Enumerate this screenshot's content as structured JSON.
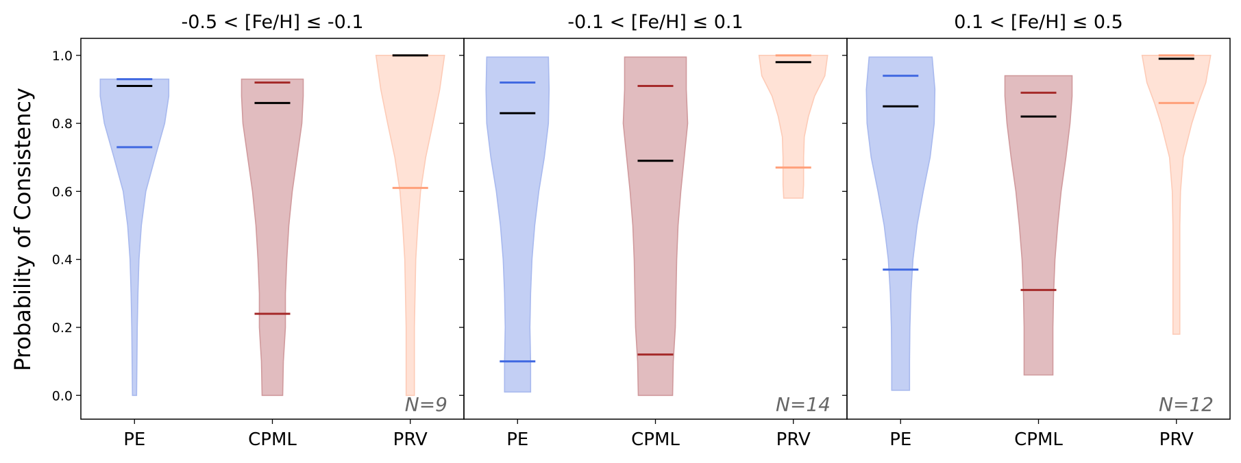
{
  "chart_data": {
    "type": "violin",
    "ylabel": "Probability of Consistency",
    "ylim": [
      -0.07,
      1.05
    ],
    "yticks": [
      "0.0",
      "0.2",
      "0.4",
      "0.6",
      "0.8",
      "1.0"
    ],
    "categories": [
      "PE",
      "CPML",
      "PRV"
    ],
    "colors": {
      "PE": {
        "fill": "#c3cff4",
        "stroke": "#a8b9ee",
        "mark": "#4169e1"
      },
      "CPML": {
        "fill": "#e1bcbf",
        "stroke": "#d09a9d",
        "mark": "#a52a2a"
      },
      "PRV": {
        "fill": "#ffe2d6",
        "stroke": "#fdcbb7",
        "mark": "#ffa07a"
      },
      "median": "#000000"
    },
    "panels": [
      {
        "title": "-0.5 < [Fe/H] ≤ -0.1",
        "n_label": "N=9",
        "violins": [
          {
            "category": "PE",
            "min": 0.0,
            "max": 0.93,
            "q1": 0.73,
            "median": 0.91,
            "q3": 0.93,
            "profile": [
              [
                0.0,
                0.06
              ],
              [
                0.1,
                0.07
              ],
              [
                0.2,
                0.08
              ],
              [
                0.3,
                0.1
              ],
              [
                0.4,
                0.13
              ],
              [
                0.5,
                0.2
              ],
              [
                0.6,
                0.33
              ],
              [
                0.7,
                0.6
              ],
              [
                0.8,
                0.88
              ],
              [
                0.88,
                1.0
              ],
              [
                0.93,
                1.0
              ]
            ]
          },
          {
            "category": "CPML",
            "min": 0.0,
            "max": 0.93,
            "q1": 0.24,
            "median": 0.86,
            "q3": 0.92,
            "profile": [
              [
                0.0,
                0.3
              ],
              [
                0.1,
                0.32
              ],
              [
                0.2,
                0.38
              ],
              [
                0.3,
                0.38
              ],
              [
                0.4,
                0.42
              ],
              [
                0.5,
                0.48
              ],
              [
                0.6,
                0.58
              ],
              [
                0.7,
                0.72
              ],
              [
                0.8,
                0.86
              ],
              [
                0.88,
                0.9
              ],
              [
                0.93,
                0.9
              ]
            ]
          },
          {
            "category": "PRV",
            "min": 0.0,
            "max": 1.0,
            "q1": 0.61,
            "median": 1.0,
            "q3": 1.0,
            "profile": [
              [
                0.0,
                0.12
              ],
              [
                0.1,
                0.12
              ],
              [
                0.2,
                0.12
              ],
              [
                0.3,
                0.14
              ],
              [
                0.4,
                0.16
              ],
              [
                0.5,
                0.22
              ],
              [
                0.6,
                0.3
              ],
              [
                0.7,
                0.45
              ],
              [
                0.8,
                0.66
              ],
              [
                0.9,
                0.86
              ],
              [
                1.0,
                1.0
              ]
            ]
          }
        ]
      },
      {
        "title": "-0.1 < [Fe/H] ≤ 0.1",
        "n_label": "N=14",
        "violins": [
          {
            "category": "PE",
            "min": 0.01,
            "max": 0.995,
            "q1": 0.1,
            "median": 0.83,
            "q3": 0.92,
            "profile": [
              [
                0.01,
                0.38
              ],
              [
                0.1,
                0.38
              ],
              [
                0.2,
                0.36
              ],
              [
                0.3,
                0.38
              ],
              [
                0.4,
                0.42
              ],
              [
                0.5,
                0.5
              ],
              [
                0.6,
                0.62
              ],
              [
                0.7,
                0.78
              ],
              [
                0.8,
                0.9
              ],
              [
                0.9,
                0.92
              ],
              [
                0.995,
                0.9
              ]
            ]
          },
          {
            "category": "CPML",
            "min": 0.0,
            "max": 0.995,
            "q1": 0.12,
            "median": 0.69,
            "q3": 0.91,
            "profile": [
              [
                0.0,
                0.5
              ],
              [
                0.1,
                0.52
              ],
              [
                0.2,
                0.58
              ],
              [
                0.3,
                0.6
              ],
              [
                0.4,
                0.62
              ],
              [
                0.5,
                0.66
              ],
              [
                0.6,
                0.74
              ],
              [
                0.7,
                0.84
              ],
              [
                0.8,
                0.94
              ],
              [
                0.9,
                0.9
              ],
              [
                0.995,
                0.9
              ]
            ]
          },
          {
            "category": "PRV",
            "min": 0.58,
            "max": 1.0,
            "q1": 0.67,
            "median": 0.98,
            "q3": 1.0,
            "profile": [
              [
                0.58,
                0.28
              ],
              [
                0.62,
                0.3
              ],
              [
                0.66,
                0.3
              ],
              [
                0.7,
                0.3
              ],
              [
                0.76,
                0.32
              ],
              [
                0.82,
                0.44
              ],
              [
                0.88,
                0.62
              ],
              [
                0.94,
                0.92
              ],
              [
                1.0,
                1.0
              ]
            ]
          }
        ]
      },
      {
        "title": "0.1 < [Fe/H] ≤ 0.5",
        "n_label": "N=12",
        "violins": [
          {
            "category": "PE",
            "min": 0.015,
            "max": 0.995,
            "q1": 0.37,
            "median": 0.85,
            "q3": 0.94,
            "profile": [
              [
                0.015,
                0.26
              ],
              [
                0.1,
                0.26
              ],
              [
                0.2,
                0.27
              ],
              [
                0.3,
                0.3
              ],
              [
                0.4,
                0.36
              ],
              [
                0.5,
                0.48
              ],
              [
                0.6,
                0.66
              ],
              [
                0.7,
                0.86
              ],
              [
                0.8,
                0.98
              ],
              [
                0.9,
                1.0
              ],
              [
                0.995,
                0.92
              ]
            ]
          },
          {
            "category": "CPML",
            "min": 0.06,
            "max": 0.94,
            "q1": 0.31,
            "median": 0.82,
            "q3": 0.89,
            "profile": [
              [
                0.06,
                0.42
              ],
              [
                0.1,
                0.42
              ],
              [
                0.2,
                0.42
              ],
              [
                0.3,
                0.44
              ],
              [
                0.4,
                0.48
              ],
              [
                0.5,
                0.56
              ],
              [
                0.6,
                0.66
              ],
              [
                0.7,
                0.8
              ],
              [
                0.8,
                0.92
              ],
              [
                0.88,
                0.98
              ],
              [
                0.94,
                0.98
              ]
            ]
          },
          {
            "category": "PRV",
            "min": 0.18,
            "max": 1.0,
            "q1": 0.86,
            "median": 0.99,
            "q3": 1.0,
            "profile": [
              [
                0.18,
                0.1
              ],
              [
                0.3,
                0.1
              ],
              [
                0.4,
                0.1
              ],
              [
                0.5,
                0.1
              ],
              [
                0.6,
                0.12
              ],
              [
                0.7,
                0.2
              ],
              [
                0.8,
                0.45
              ],
              [
                0.86,
                0.64
              ],
              [
                0.92,
                0.86
              ],
              [
                1.0,
                1.0
              ]
            ]
          }
        ]
      }
    ]
  }
}
